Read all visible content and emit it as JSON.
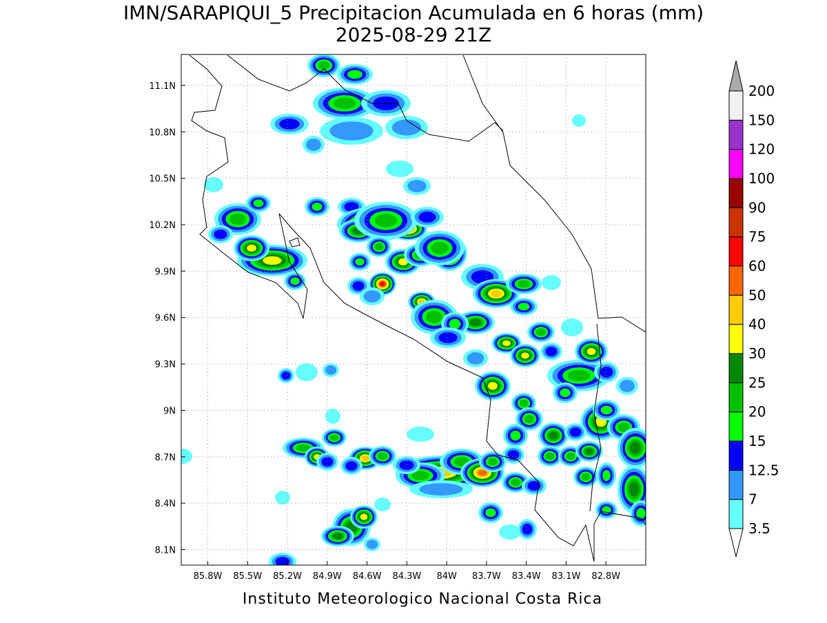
{
  "title": "IMN/SARAPIQUI_5 Precipitacion Acumulada en 6 horas (mm)",
  "subtitle": "2025-08-29 21Z",
  "map": {
    "xlim": [
      -86.0,
      -82.5
    ],
    "ylim": [
      8.0,
      11.3
    ],
    "grid": true,
    "xticks": [
      {
        "value": -85.8,
        "label": "85.8W"
      },
      {
        "value": -85.5,
        "label": "85.5W"
      },
      {
        "value": -85.2,
        "label": "85.2W"
      },
      {
        "value": -84.9,
        "label": "84.9W"
      },
      {
        "value": -84.6,
        "label": "84.6W"
      },
      {
        "value": -84.3,
        "label": "84.3W"
      },
      {
        "value": -84,
        "label": "84W"
      },
      {
        "value": -83.7,
        "label": "83.7W"
      },
      {
        "value": -83.4,
        "label": "83.4W"
      },
      {
        "value": -83.1,
        "label": "83.1W"
      },
      {
        "value": -82.8,
        "label": "82.8W"
      }
    ],
    "yticks": [
      {
        "value": 8.1,
        "label": "8.1N"
      },
      {
        "value": 8.4,
        "label": "8.4N"
      },
      {
        "value": 8.7,
        "label": "8.7N"
      },
      {
        "value": 9,
        "label": "9N"
      },
      {
        "value": 9.3,
        "label": "9.3N"
      },
      {
        "value": 9.6,
        "label": "9.6N"
      },
      {
        "value": 9.9,
        "label": "9.9N"
      },
      {
        "value": 10.2,
        "label": "10.2N"
      },
      {
        "value": 10.5,
        "label": "10.5N"
      },
      {
        "value": 10.8,
        "label": "10.8N"
      },
      {
        "value": 11.1,
        "label": "11.1N"
      }
    ]
  },
  "colorbar": {
    "levels": [
      3.5,
      7,
      12.5,
      15,
      20,
      25,
      30,
      40,
      50,
      60,
      75,
      90,
      100,
      120,
      150,
      200
    ],
    "colors": [
      "#66ffff",
      "#3399ff",
      "#0000ff",
      "#00ff00",
      "#00c000",
      "#008800",
      "#ffff00",
      "#ffcc00",
      "#ff6600",
      "#ff0000",
      "#cc3300",
      "#990000",
      "#ff00ff",
      "#9933cc",
      "#f2f2f2"
    ],
    "under_color": "#ffffff",
    "over_color": "#aaaaaa"
  },
  "footer": "Instituto Meteorologico Nacional Costa Rica"
}
